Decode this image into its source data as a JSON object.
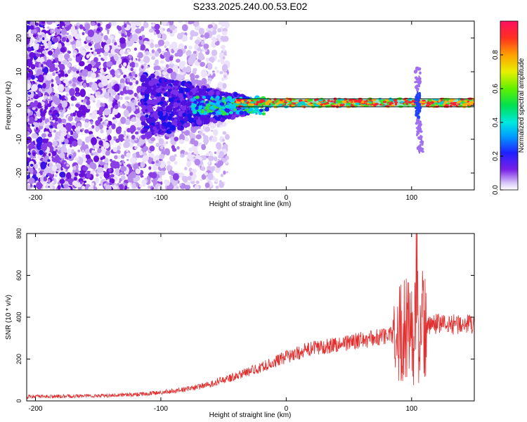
{
  "title": "S233.2025.240.00.53.E02",
  "chart_data": [
    {
      "type": "heatmap",
      "id": "spectrogram",
      "xlabel": "Height of straight line (km)",
      "ylabel": "Frequency (Hz)",
      "xlim": [
        -207,
        150
      ],
      "ylim": [
        -25,
        25
      ],
      "xticks": [
        -200,
        -100,
        0,
        100
      ],
      "yticks": [
        -20,
        -10,
        0,
        10,
        20
      ],
      "colorbar": {
        "label": "Normalized spectral amplitude",
        "range": [
          0.0,
          1.0
        ],
        "ticks": [
          0.0,
          0.2,
          0.4,
          0.6,
          0.8
        ]
      },
      "band": {
        "x_start": -40,
        "x_end": 150,
        "freq_center": 0.8,
        "freq_halfwidth": 1.2
      },
      "spike": {
        "x": 105,
        "freq_top": 12,
        "freq_bottom": -14
      }
    },
    {
      "type": "line",
      "id": "snr",
      "xlabel": "Height of straight line (km)",
      "ylabel": "SNR (10 * v/v)",
      "xlim": [
        -207,
        150
      ],
      "ylim": [
        0,
        800
      ],
      "xticks": [
        -200,
        -100,
        0,
        100
      ],
      "yticks": [
        0,
        200,
        400,
        600,
        800
      ],
      "series": [
        {
          "name": "SNR",
          "color": "#e03030",
          "x": [
            -207,
            -180,
            -150,
            -120,
            -100,
            -80,
            -60,
            -40,
            -20,
            0,
            20,
            40,
            60,
            80,
            90,
            95,
            100,
            102,
            104,
            106,
            108,
            110,
            115,
            120,
            130,
            140,
            150
          ],
          "values": [
            20,
            22,
            25,
            30,
            40,
            55,
            80,
            120,
            160,
            210,
            250,
            270,
            290,
            310,
            320,
            350,
            400,
            150,
            780,
            60,
            500,
            350,
            370,
            370,
            365,
            370,
            360
          ]
        }
      ]
    }
  ]
}
